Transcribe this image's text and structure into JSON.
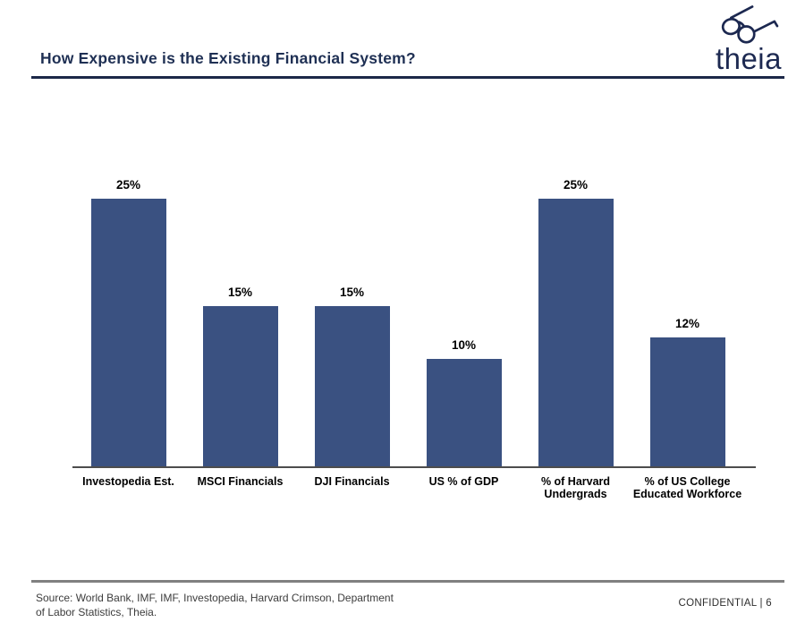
{
  "header": {
    "title": "How Expensive is the Existing Financial System?",
    "logo_text": "theia"
  },
  "chart_data": {
    "type": "bar",
    "title": "",
    "xlabel": "",
    "ylabel": "",
    "categories": [
      "Investopedia Est.",
      "MSCI Financials",
      "DJI Financials",
      "US % of GDP",
      "% of Harvard\nUndergrads",
      "% of US College\nEducated Workforce"
    ],
    "values": [
      25,
      15,
      15,
      10,
      25,
      12
    ],
    "value_labels": [
      "25%",
      "15%",
      "15%",
      "10%",
      "25%",
      "12%"
    ],
    "unit": "%",
    "ylim": [
      0,
      27
    ],
    "grid": false,
    "legend": false,
    "bar_color": "#3a5181",
    "axis_color": "#4d4d4d"
  },
  "footer": {
    "source": "Source: World Bank, IMF, IMF, Investopedia, Harvard Crimson, Department\nof Labor Statistics, Theia.",
    "confidential": "CONFIDENTIAL | 6"
  },
  "colors": {
    "title_navy": "#1f3054",
    "brand_navy": "#1d2951",
    "bar_navy": "#3a5181",
    "rule_gray": "#808080"
  }
}
